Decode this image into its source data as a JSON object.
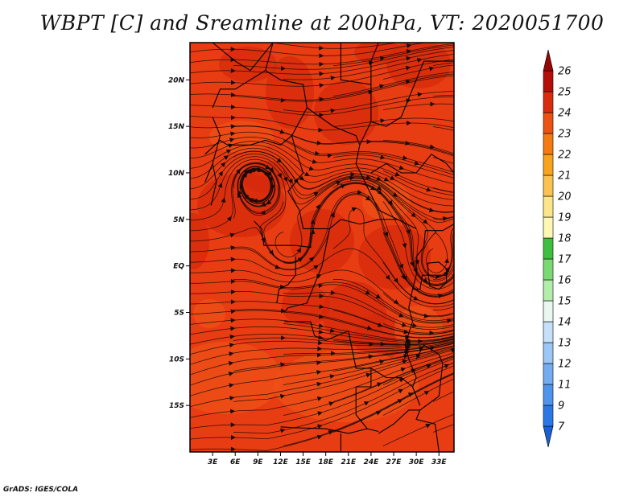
{
  "title": "WBPT [C] and Sreamline at 200hPa, VT: 2020051700",
  "credit": "GrADS: IGES/COLA",
  "map": {
    "lon_range": [
      0,
      35
    ],
    "lat_range": [
      -20,
      24
    ],
    "x_ticks": [
      {
        "value": 3,
        "label": "3E"
      },
      {
        "value": 6,
        "label": "6E"
      },
      {
        "value": 9,
        "label": "9E"
      },
      {
        "value": 12,
        "label": "12E"
      },
      {
        "value": 15,
        "label": "15E"
      },
      {
        "value": 18,
        "label": "18E"
      },
      {
        "value": 21,
        "label": "21E"
      },
      {
        "value": 24,
        "label": "24E"
      },
      {
        "value": 27,
        "label": "27E"
      },
      {
        "value": 30,
        "label": "30E"
      },
      {
        "value": 33,
        "label": "33E"
      }
    ],
    "y_ticks": [
      {
        "value": 20,
        "label": "20N"
      },
      {
        "value": 15,
        "label": "15N"
      },
      {
        "value": 10,
        "label": "10N"
      },
      {
        "value": 5,
        "label": "5N"
      },
      {
        "value": 0,
        "label": "EQ"
      },
      {
        "value": -5,
        "label": "5S"
      },
      {
        "value": -10,
        "label": "10S"
      },
      {
        "value": -15,
        "label": "15S"
      }
    ],
    "background_color": "#e83c12",
    "patch_color_warm": "#d52a0c",
    "patch_color_cool": "#ef5018",
    "streamline_color": "#1a0a05",
    "border_color": "#000000"
  },
  "colorbar": {
    "levels": [
      "7",
      "9",
      "11",
      "12",
      "13",
      "14",
      "15",
      "16",
      "17",
      "18",
      "19",
      "20",
      "21",
      "22",
      "23",
      "24",
      "25",
      "26"
    ],
    "colors": [
      "#1a5fd8",
      "#2a78e6",
      "#4d94ee",
      "#73acf2",
      "#9cc6f6",
      "#c6e0fa",
      "#e9f7f0",
      "#b2eeaa",
      "#7ad973",
      "#3fbf3f",
      "#fff7b2",
      "#fde58a",
      "#fbc24e",
      "#f9a21c",
      "#f57a10",
      "#ee5212",
      "#d92b0d",
      "#b50e08",
      "#960606"
    ]
  }
}
